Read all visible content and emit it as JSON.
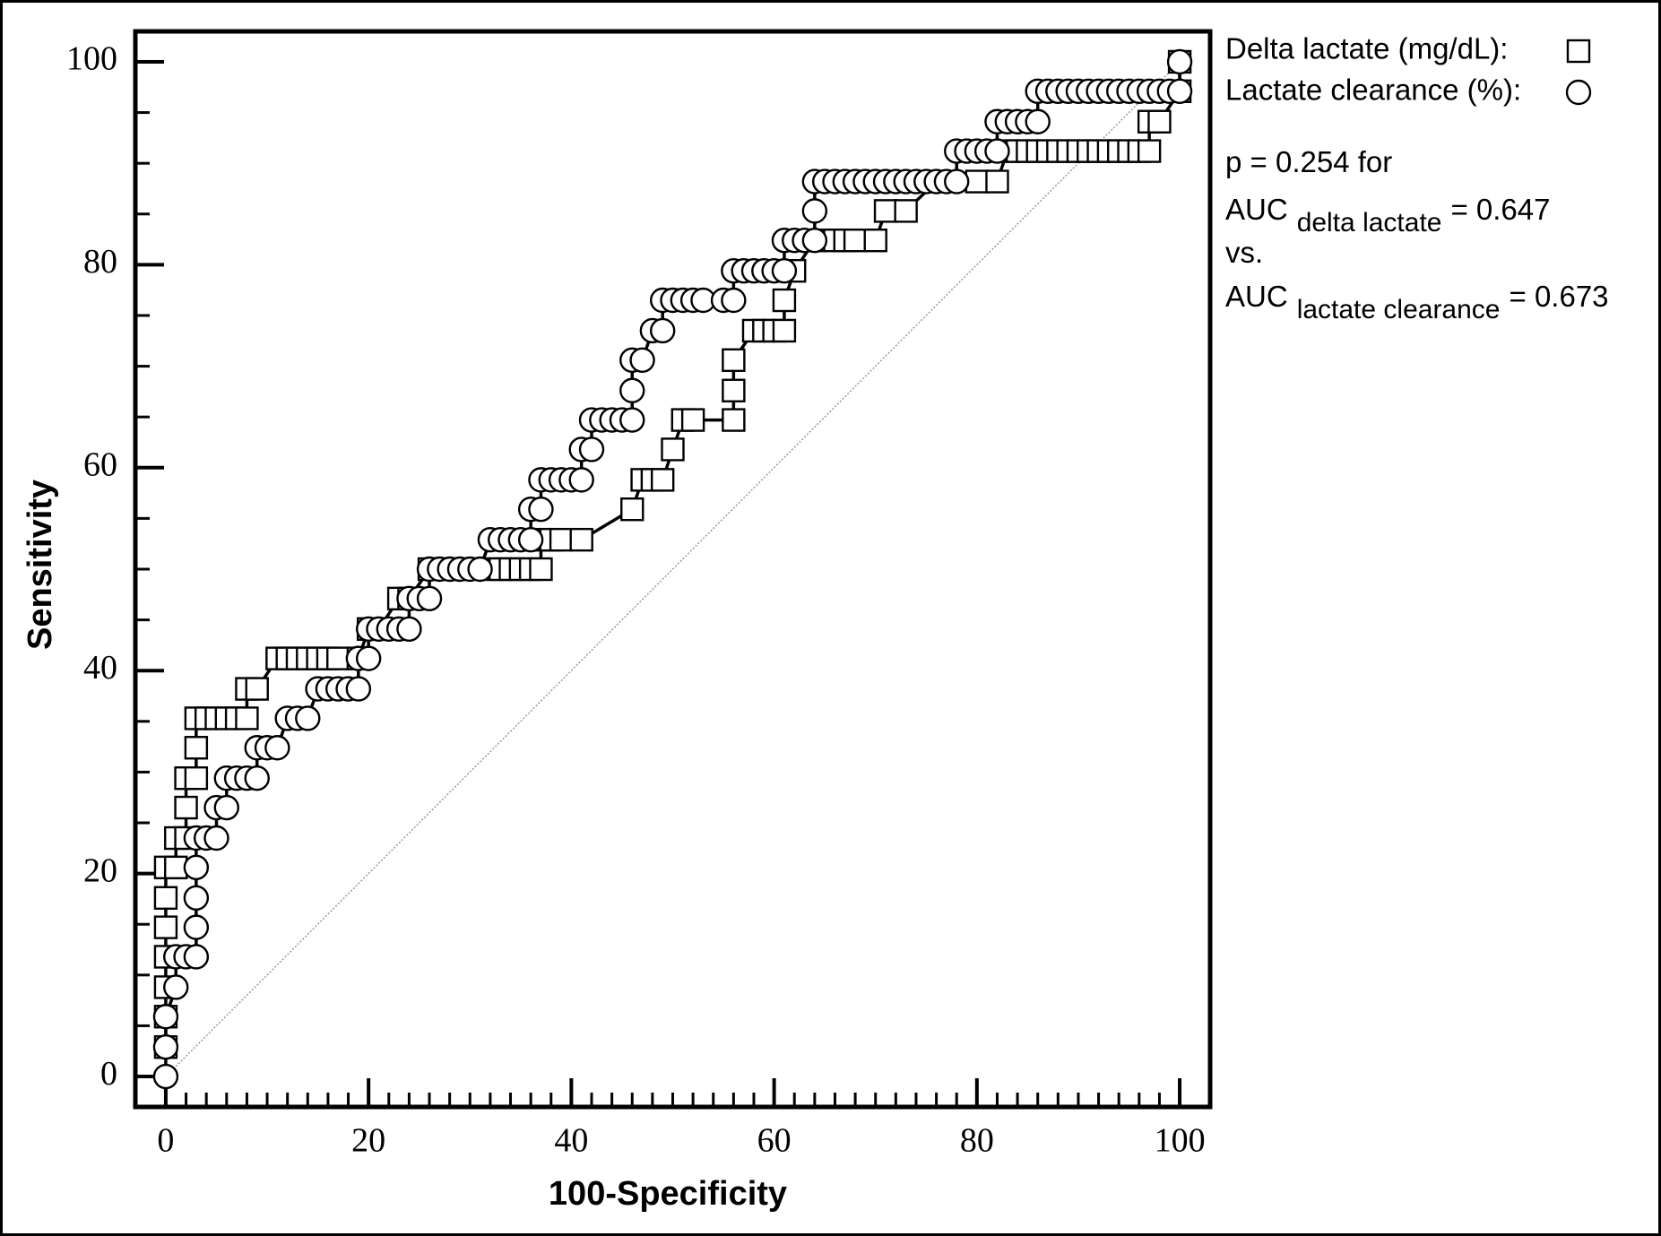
{
  "chart_data": {
    "type": "roc",
    "xlabel": "100-Specificity",
    "ylabel": "Sensitivity",
    "xlim": [
      -3,
      103
    ],
    "ylim": [
      -3,
      103
    ],
    "xticks": [
      0,
      20,
      40,
      60,
      80,
      100
    ],
    "yticks": [
      0,
      20,
      40,
      60,
      80,
      100
    ],
    "xticks_minor": [
      2,
      4,
      6,
      8,
      10,
      12,
      14,
      16,
      18,
      22,
      24,
      26,
      28,
      30,
      32,
      34,
      36,
      38,
      42,
      44,
      46,
      48,
      50,
      52,
      54,
      56,
      58,
      62,
      64,
      66,
      68,
      70,
      72,
      74,
      76,
      78,
      82,
      84,
      86,
      88,
      90,
      92,
      94,
      96,
      98
    ],
    "yticks_minor": [
      5,
      10,
      15,
      25,
      30,
      35,
      45,
      50,
      55,
      65,
      70,
      75,
      85,
      90,
      95
    ],
    "diagonal": true,
    "grid": false,
    "legend": "outside-right",
    "series": [
      {
        "name": "Delta lactate (mg/dL):",
        "marker": "square",
        "color": "#000000",
        "x": [
          0,
          0,
          0,
          0,
          0,
          0,
          0,
          1,
          1,
          2,
          2,
          2,
          3,
          3,
          3,
          4,
          5,
          6,
          7,
          8,
          8,
          9,
          11,
          12,
          13,
          14,
          15,
          16,
          17,
          19,
          20,
          21,
          23,
          24,
          26,
          27,
          28,
          29,
          30,
          32,
          33,
          34,
          35,
          36,
          37,
          37,
          38,
          39,
          41,
          46,
          47,
          48,
          49,
          50,
          51,
          52,
          56,
          56,
          56,
          58,
          59,
          60,
          61,
          61,
          62,
          64,
          66,
          67,
          68,
          70,
          71,
          73,
          76,
          80,
          82,
          83,
          84,
          85,
          86,
          87,
          88,
          89,
          90,
          91,
          92,
          93,
          94,
          95,
          96,
          97,
          97,
          98,
          100,
          100
        ],
        "values": [
          2.9,
          5.9,
          8.8,
          11.8,
          14.7,
          17.6,
          20.6,
          20.6,
          23.5,
          23.5,
          26.5,
          29.4,
          29.4,
          32.4,
          35.3,
          35.3,
          35.3,
          35.3,
          35.3,
          35.3,
          38.2,
          38.2,
          41.2,
          41.2,
          41.2,
          41.2,
          41.2,
          41.2,
          41.2,
          41.2,
          44.1,
          44.1,
          47.1,
          47.1,
          50,
          50,
          50,
          50,
          50,
          50,
          50,
          50,
          50,
          50,
          50,
          52.9,
          52.9,
          52.9,
          52.9,
          55.9,
          58.8,
          58.8,
          58.8,
          61.8,
          64.7,
          64.7,
          64.7,
          67.6,
          70.6,
          73.5,
          73.5,
          73.5,
          73.5,
          76.5,
          79.4,
          82.4,
          82.4,
          82.4,
          82.4,
          82.4,
          85.3,
          85.3,
          88.2,
          88.2,
          88.2,
          91.2,
          91.2,
          91.2,
          91.2,
          91.2,
          91.2,
          91.2,
          91.2,
          91.2,
          91.2,
          91.2,
          91.2,
          91.2,
          91.2,
          91.2,
          94.1,
          94.1,
          97.1,
          100
        ]
      },
      {
        "name": "Lactate clearance (%):",
        "marker": "circle",
        "color": "#000000",
        "x": [
          0,
          0,
          0,
          1,
          1,
          2,
          3,
          3,
          3,
          3,
          3,
          4,
          5,
          5,
          6,
          6,
          7,
          8,
          9,
          9,
          10,
          11,
          12,
          13,
          14,
          15,
          16,
          17,
          18,
          19,
          19,
          20,
          20,
          21,
          22,
          23,
          24,
          24,
          25,
          26,
          26,
          27,
          28,
          29,
          30,
          31,
          32,
          33,
          34,
          35,
          36,
          36,
          37,
          37,
          38,
          39,
          40,
          41,
          41,
          42,
          42,
          43,
          44,
          45,
          46,
          46,
          46,
          47,
          48,
          49,
          49,
          50,
          51,
          52,
          53,
          55,
          56,
          56,
          57,
          58,
          59,
          60,
          61,
          61,
          62,
          63,
          64,
          64,
          64,
          65,
          66,
          67,
          68,
          69,
          70,
          71,
          72,
          73,
          74,
          75,
          76,
          77,
          78,
          78,
          79,
          80,
          81,
          82,
          82,
          83,
          84,
          85,
          86,
          86,
          87,
          88,
          89,
          90,
          91,
          92,
          93,
          94,
          95,
          96,
          97,
          98,
          99,
          100,
          100
        ],
        "values": [
          0,
          2.9,
          5.9,
          8.8,
          11.8,
          11.8,
          11.8,
          14.7,
          17.6,
          20.6,
          23.5,
          23.5,
          23.5,
          26.5,
          26.5,
          29.4,
          29.4,
          29.4,
          29.4,
          32.4,
          32.4,
          32.4,
          35.3,
          35.3,
          35.3,
          38.2,
          38.2,
          38.2,
          38.2,
          38.2,
          41.2,
          41.2,
          44.1,
          44.1,
          44.1,
          44.1,
          44.1,
          47.1,
          47.1,
          47.1,
          50,
          50,
          50,
          50,
          50,
          50,
          52.9,
          52.9,
          52.9,
          52.9,
          52.9,
          55.9,
          55.9,
          58.8,
          58.8,
          58.8,
          58.8,
          58.8,
          61.8,
          61.8,
          64.7,
          64.7,
          64.7,
          64.7,
          64.7,
          67.6,
          70.6,
          70.6,
          73.5,
          73.5,
          76.5,
          76.5,
          76.5,
          76.5,
          76.5,
          76.5,
          76.5,
          79.4,
          79.4,
          79.4,
          79.4,
          79.4,
          79.4,
          82.4,
          82.4,
          82.4,
          82.4,
          85.3,
          88.2,
          88.2,
          88.2,
          88.2,
          88.2,
          88.2,
          88.2,
          88.2,
          88.2,
          88.2,
          88.2,
          88.2,
          88.2,
          88.2,
          88.2,
          91.2,
          91.2,
          91.2,
          91.2,
          91.2,
          94.1,
          94.1,
          94.1,
          94.1,
          94.1,
          97.1,
          97.1,
          97.1,
          97.1,
          97.1,
          97.1,
          97.1,
          97.1,
          97.1,
          97.1,
          97.1,
          97.1,
          97.1,
          97.1,
          97.1,
          100
        ]
      }
    ],
    "annotations": [
      {
        "text": "p = 0.254 for"
      },
      {
        "text": "AUC",
        "sub": "delta lactate",
        "after": "= 0.647"
      },
      {
        "text": "vs."
      },
      {
        "text": "AUC",
        "sub": "lactate clearance",
        "after": "= 0.673"
      }
    ]
  }
}
